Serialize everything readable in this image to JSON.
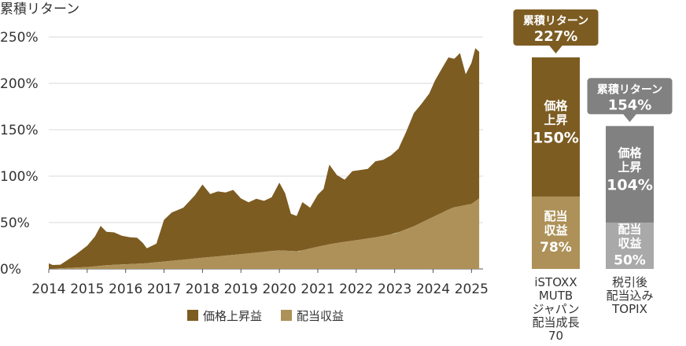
{
  "chart_data": [
    {
      "type": "area",
      "stacked": true,
      "ylabel": "累積リターン",
      "ylim": [
        0,
        250
      ],
      "yticks": [
        0,
        50,
        100,
        150,
        200,
        250
      ],
      "ytick_labels": [
        "0%",
        "50%",
        "100%",
        "150%",
        "200%",
        "250%"
      ],
      "xlim": [
        2014.0,
        2025.3
      ],
      "xticks": [
        2014,
        2015,
        2016,
        2017,
        2018,
        2019,
        2020,
        2021,
        2022,
        2023,
        2024,
        2025
      ],
      "xtick_labels": [
        "2014",
        "2015",
        "2016",
        "2017",
        "2018",
        "2019",
        "2020",
        "2021",
        "2022",
        "2023",
        "2024",
        "2025"
      ],
      "grid": true,
      "legend_position": "bottom",
      "series": [
        {
          "name": "配当収益",
          "color": "#ad9158",
          "x": [
            2014.0,
            2014.5,
            2015.0,
            2015.5,
            2016.0,
            2016.5,
            2017.0,
            2017.5,
            2018.0,
            2018.5,
            2019.0,
            2019.5,
            2020.0,
            2020.5,
            2021.0,
            2021.5,
            2022.0,
            2022.5,
            2023.0,
            2023.5,
            2024.0,
            2024.5,
            2025.0,
            2025.2
          ],
          "values": [
            0,
            1,
            2,
            4,
            5,
            6,
            8,
            10,
            12,
            14,
            16,
            18,
            20,
            19,
            24,
            28,
            31,
            34,
            38,
            46,
            56,
            66,
            70,
            76
          ]
        },
        {
          "name": "価格上昇益",
          "color": "#7d5c22",
          "x": [
            2014.0,
            2014.1,
            2014.3,
            2014.5,
            2014.7,
            2015.0,
            2015.2,
            2015.35,
            2015.5,
            2015.7,
            2015.9,
            2016.1,
            2016.3,
            2016.45,
            2016.55,
            2016.8,
            2017.0,
            2017.2,
            2017.5,
            2017.8,
            2018.0,
            2018.2,
            2018.4,
            2018.6,
            2018.8,
            2019.0,
            2019.2,
            2019.4,
            2019.6,
            2019.8,
            2020.0,
            2020.15,
            2020.3,
            2020.45,
            2020.6,
            2020.8,
            2021.0,
            2021.15,
            2021.3,
            2021.5,
            2021.7,
            2021.9,
            2022.1,
            2022.3,
            2022.5,
            2022.7,
            2022.9,
            2023.1,
            2023.3,
            2023.5,
            2023.7,
            2023.9,
            2024.05,
            2024.2,
            2024.4,
            2024.55,
            2024.7,
            2024.85,
            2025.0,
            2025.1,
            2025.2
          ],
          "values": [
            6,
            4,
            4,
            9,
            14,
            23,
            32,
            43,
            36,
            35,
            31,
            29,
            28,
            22,
            16,
            20,
            45,
            52,
            56,
            68,
            79,
            68,
            70,
            68,
            70,
            60,
            55,
            58,
            55,
            58,
            73,
            62,
            40,
            38,
            52,
            44,
            56,
            61,
            86,
            73,
            67,
            75,
            75,
            75,
            82,
            82,
            85,
            90,
            105,
            122,
            128,
            135,
            146,
            154,
            164,
            160,
            165,
            141,
            152,
            165,
            158
          ]
        }
      ]
    },
    {
      "type": "bar",
      "stacked": true,
      "categories": [
        "iSTOXX MUTB ジャパン 配当成長 70",
        "税引後 配当込み TOPIX"
      ],
      "category_lines": [
        [
          "iSTOXX",
          "MUTB",
          "ジャパン",
          "配当成長",
          "70"
        ],
        [
          "税引後",
          "配当込み",
          "TOPIX"
        ]
      ],
      "series": [
        {
          "name": "配当収益",
          "values": [
            78,
            50
          ],
          "labels": [
            "配当",
            "収益"
          ]
        },
        {
          "name": "価格上昇益",
          "values": [
            150,
            104
          ],
          "labels": [
            "価格",
            "上昇"
          ]
        }
      ],
      "totals": [
        227,
        154
      ],
      "total_label": "累積リターン",
      "value_labels": {
        "dividend": [
          "78%",
          "50%"
        ],
        "price": [
          "150%",
          "104%"
        ],
        "total": [
          "227%",
          "154%"
        ]
      },
      "colors": {
        "bar1_dividend": "#ad9158",
        "bar1_price": "#7d5c22",
        "bar1_callout": "#7d5c22",
        "bar2_dividend": "#a9a9a9",
        "bar2_price": "#818181",
        "bar2_callout": "#818181"
      },
      "ylim": [
        0,
        250
      ]
    }
  ]
}
